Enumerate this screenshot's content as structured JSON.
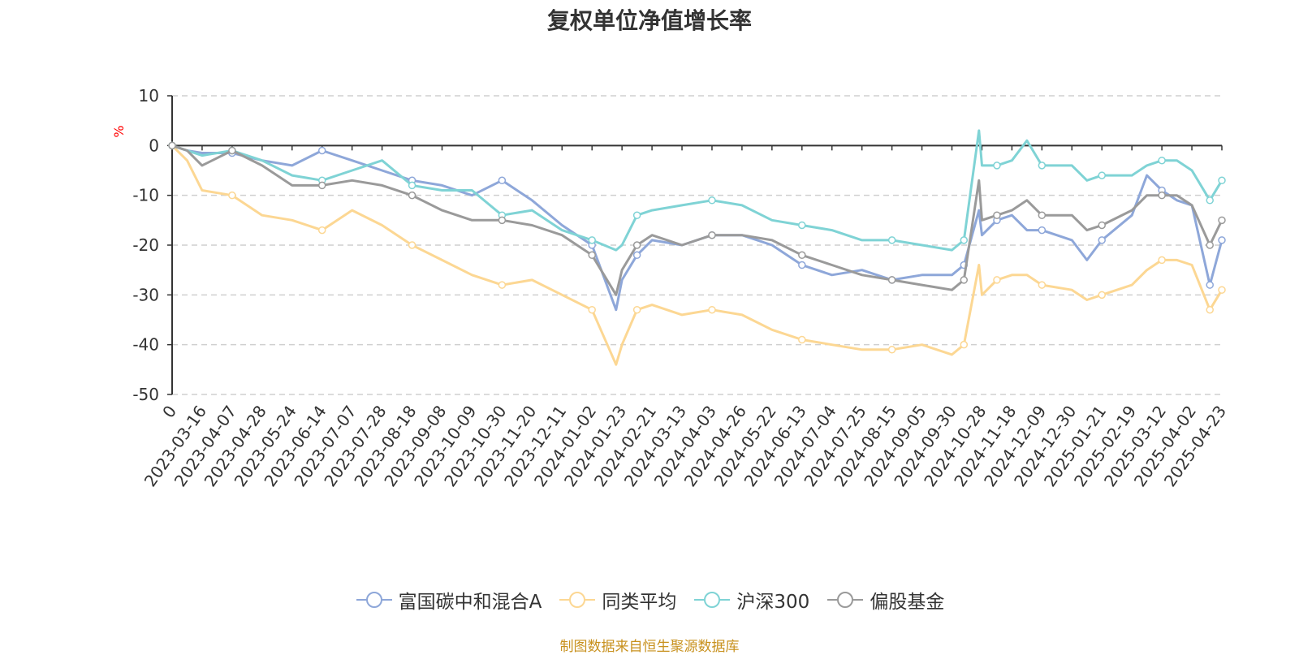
{
  "title": "复权单位净值增长率",
  "footer": "制图数据来自恒生聚源数据库",
  "colors": {
    "fund": "#8ea7d9",
    "peer": "#fcd793",
    "index": "#7fd3d5",
    "equity": "#9a9a9a",
    "unit": "#ff0000"
  },
  "chart_data": {
    "type": "line",
    "title": "复权单位净值增长率",
    "ylabel": "%",
    "ylim": [
      -50,
      10
    ],
    "yticks": [
      10,
      0,
      -10,
      -20,
      -30,
      -40,
      -50
    ],
    "grid": true,
    "legend_position": "bottom",
    "xtick_labels": [
      "0",
      "2023-03-16",
      "2023-04-07",
      "2023-04-28",
      "2023-05-24",
      "2023-06-14",
      "2023-07-07",
      "2023-07-28",
      "2023-08-18",
      "2023-09-08",
      "2023-10-09",
      "2023-10-30",
      "2023-11-20",
      "2023-12-11",
      "2024-01-02",
      "2024-01-23",
      "2024-02-21",
      "2024-03-13",
      "2024-04-03",
      "2024-04-26",
      "2024-05-22",
      "2024-06-13",
      "2024-07-04",
      "2024-07-25",
      "2024-08-15",
      "2024-09-05",
      "2024-09-30",
      "2024-10-28",
      "2024-11-18",
      "2024-12-09",
      "2024-12-30",
      "2025-01-21",
      "2025-02-19",
      "2025-03-12",
      "2025-04-02",
      "2025-04-23"
    ],
    "x_index": [
      0,
      0.5,
      1,
      2,
      3,
      4,
      5,
      6,
      7,
      8,
      9,
      10,
      11,
      12,
      13,
      14,
      14.8,
      15,
      15.5,
      16,
      17,
      18,
      19,
      20,
      21,
      22,
      23,
      24,
      25,
      26,
      26.4,
      26.9,
      27,
      27.5,
      28,
      28.5,
      29,
      30,
      30.5,
      31,
      32,
      32.5,
      33,
      33.5,
      34,
      34.6,
      35
    ],
    "series": [
      {
        "name": "富国碳中和混合A",
        "values": [
          0,
          -1,
          -1.5,
          -1.5,
          -3,
          -4,
          -1,
          -3,
          -5,
          -7,
          -8,
          -10,
          -7,
          -11,
          -16,
          -20,
          -33,
          -27,
          -22,
          -19,
          -20,
          -18,
          -18,
          -20,
          -24,
          -26,
          -25,
          -27,
          -26,
          -26,
          -24,
          -13,
          -18,
          -15,
          -14,
          -17,
          -17,
          -19,
          -23,
          -19,
          -14,
          -6,
          -9,
          -11,
          -12,
          -28,
          -19
        ]
      },
      {
        "name": "同类平均",
        "values": [
          0,
          -3,
          -9,
          -10,
          -14,
          -15,
          -17,
          -13,
          -16,
          -20,
          -23,
          -26,
          -28,
          -27,
          -30,
          -33,
          -44,
          -40,
          -33,
          -32,
          -34,
          -33,
          -34,
          -37,
          -39,
          -40,
          -41,
          -41,
          -40,
          -42,
          -40,
          -24,
          -30,
          -27,
          -26,
          -26,
          -28,
          -29,
          -31,
          -30,
          -28,
          -25,
          -23,
          -23,
          -24,
          -33,
          -29
        ]
      },
      {
        "name": "沪深300",
        "values": [
          0,
          -1,
          -2,
          -1,
          -3,
          -6,
          -7,
          -5,
          -3,
          -8,
          -9,
          -9,
          -14,
          -13,
          -17,
          -19,
          -21,
          -20,
          -14,
          -13,
          -12,
          -11,
          -12,
          -15,
          -16,
          -17,
          -19,
          -19,
          -20,
          -21,
          -19,
          3,
          -4,
          -4,
          -3,
          1,
          -4,
          -4,
          -7,
          -6,
          -6,
          -4,
          -3,
          -3,
          -5,
          -11,
          -7
        ]
      },
      {
        "name": "偏股基金",
        "values": [
          0,
          -1,
          -4,
          -1,
          -4,
          -8,
          -8,
          -7,
          -8,
          -10,
          -13,
          -15,
          -15,
          -16,
          -18,
          -22,
          -30,
          -25,
          -20,
          -18,
          -20,
          -18,
          -18,
          -19,
          -22,
          -24,
          -26,
          -27,
          -28,
          -29,
          -27,
          -7,
          -15,
          -14,
          -13,
          -11,
          -14,
          -14,
          -17,
          -16,
          -13,
          -10,
          -10,
          -10,
          -12,
          -20,
          -15
        ]
      }
    ]
  }
}
